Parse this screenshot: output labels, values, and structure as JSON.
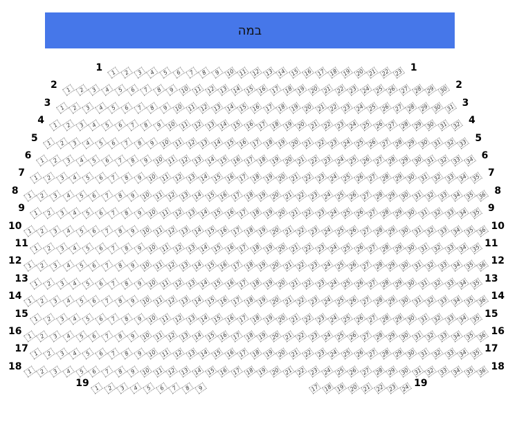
{
  "stage": {
    "label": "במה",
    "color": "#4677e9"
  },
  "rows": [
    {
      "label": "1",
      "seats": [
        [
          1,
          23
        ]
      ]
    },
    {
      "label": "2",
      "seats": [
        [
          1,
          30
        ]
      ]
    },
    {
      "label": "3",
      "seats": [
        [
          1,
          31
        ]
      ]
    },
    {
      "label": "4",
      "seats": [
        [
          1,
          32
        ]
      ]
    },
    {
      "label": "5",
      "seats": [
        [
          1,
          33
        ]
      ]
    },
    {
      "label": "6",
      "seats": [
        [
          1,
          34
        ]
      ]
    },
    {
      "label": "7",
      "seats": [
        [
          1,
          35
        ]
      ]
    },
    {
      "label": "8",
      "seats": [
        [
          1,
          36
        ]
      ]
    },
    {
      "label": "9",
      "seats": [
        [
          1,
          35
        ]
      ]
    },
    {
      "label": "10",
      "seats": [
        [
          1,
          36
        ]
      ]
    },
    {
      "label": "11",
      "seats": [
        [
          1,
          35
        ]
      ]
    },
    {
      "label": "12",
      "seats": [
        [
          1,
          36
        ]
      ]
    },
    {
      "label": "13",
      "seats": [
        [
          1,
          35
        ]
      ]
    },
    {
      "label": "14",
      "seats": [
        [
          1,
          36
        ]
      ]
    },
    {
      "label": "15",
      "seats": [
        [
          1,
          35
        ]
      ]
    },
    {
      "label": "16",
      "seats": [
        [
          1,
          36
        ]
      ]
    },
    {
      "label": "17",
      "seats": [
        [
          1,
          35
        ]
      ]
    },
    {
      "label": "18",
      "seats": [
        [
          1,
          36
        ]
      ]
    },
    {
      "label": "19",
      "seats": [
        [
          1,
          9
        ],
        [
          17,
          24
        ]
      ]
    }
  ]
}
